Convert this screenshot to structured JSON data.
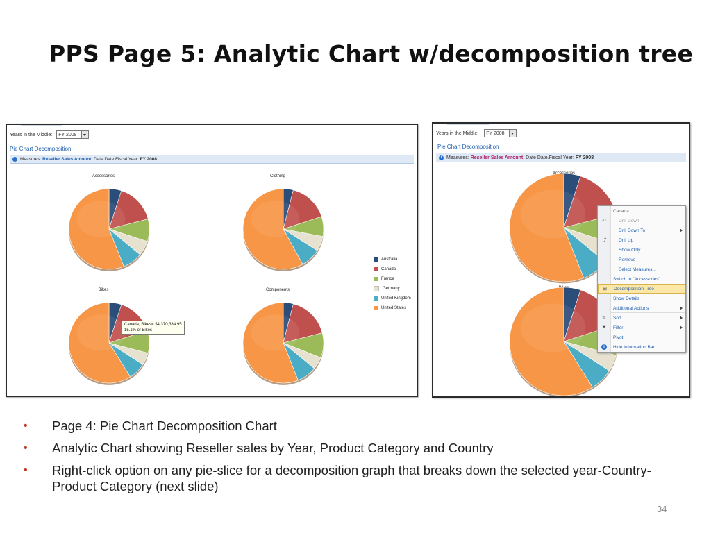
{
  "slide": {
    "title": "PPS Page 5: Analytic Chart w/decomposition tree",
    "page_number": "34",
    "bullets": [
      "Page 4: Pie Chart Decomposition Chart",
      "Analytic Chart showing Reseller sales by Year, Product Category and Country",
      "Right-click option on any pie-slice for a decomposition graph that breaks down the selected year-Country-Product Category  (next slide)"
    ]
  },
  "colors": {
    "australia": "#2a4d7a",
    "canada": "#c0504d",
    "france": "#9bbb59",
    "germany": "#e6e2cf",
    "united_kingdom": "#4bacc6",
    "united_states": "#f79646",
    "bullet": "#c0392b",
    "link": "#1f5fae"
  },
  "left_screenshot": {
    "filter_label": "Years in the Middle:",
    "filter_value": "FY 2008",
    "report_title": "Pie Chart Decomposition",
    "info_prefix": "Measures:",
    "info_measure": "Reseller Sales Amount",
    "info_mid": ", Date Date.Fiscal Year:",
    "info_year": "FY 2008",
    "tooltip_line1": "Canada, Bikes= $4,370,334.95",
    "tooltip_line2": "15.1% of Bikes"
  },
  "right_screenshot": {
    "filter_label": "Years in the Middle:",
    "filter_value": "FY 2008",
    "report_title": "Pie Chart Decomposition",
    "info_prefix": "Measures:",
    "info_measure": "Reseller Sales Amount",
    "info_mid": ", Date Date.Fiscal Year:",
    "info_year": "FY 2008",
    "context_menu": {
      "header": "Canada",
      "items": [
        "Drill Down",
        "Drill Down To",
        "Drill Up",
        "Show Only",
        "Remove",
        "Select Measures...",
        "Switch to \"Accessories\"",
        "Decomposition Tree",
        "Show Details",
        "Additional Actions",
        "Sort",
        "Filter",
        "Pivot",
        "Hide Information Bar"
      ]
    }
  },
  "chart_data": [
    {
      "type": "pie",
      "title": "Accessories",
      "categories": [
        "Australia",
        "Canada",
        "France",
        "Germany",
        "United Kingdom",
        "United States"
      ],
      "values": [
        5,
        16,
        9,
        6,
        8,
        56
      ]
    },
    {
      "type": "pie",
      "title": "Clothing",
      "categories": [
        "Australia",
        "Canada",
        "France",
        "Germany",
        "United Kingdom",
        "United States"
      ],
      "values": [
        4,
        16,
        8,
        6,
        8,
        58
      ]
    },
    {
      "type": "pie",
      "title": "Bikes",
      "categories": [
        "Australia",
        "Canada",
        "France",
        "Germany",
        "United Kingdom",
        "United States"
      ],
      "values": [
        5,
        15.1,
        9,
        5,
        7,
        58.9
      ]
    },
    {
      "type": "pie",
      "title": "Components",
      "categories": [
        "Australia",
        "Canada",
        "France",
        "Germany",
        "United Kingdom",
        "United States"
      ],
      "values": [
        4,
        17,
        10,
        5,
        8,
        56
      ]
    },
    {
      "type": "pie",
      "title": "Accessories",
      "categories": [
        "Australia",
        "Canada",
        "France",
        "Germany",
        "United Kingdom",
        "United States"
      ],
      "values": [
        5,
        16,
        9,
        6,
        8,
        56
      ]
    },
    {
      "type": "pie",
      "title": "Bikes",
      "categories": [
        "Australia",
        "Canada",
        "France",
        "Germany",
        "United Kingdom",
        "United States"
      ],
      "values": [
        5,
        15.1,
        9,
        5,
        7,
        58.9
      ]
    }
  ]
}
